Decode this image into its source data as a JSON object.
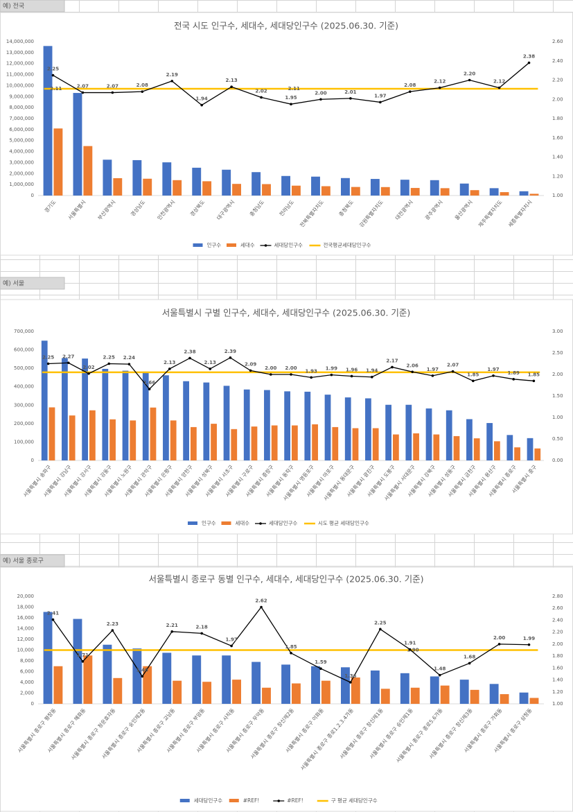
{
  "sheet_labels": [
    "예) 전국",
    "예) 서울",
    "예) 서울 종로구"
  ],
  "chart_data": [
    {
      "type": "combo",
      "title": "전국 시도 인구수, 세대수, 세대당인구수 (2025.06.30. 기준)",
      "categories": [
        "경기도",
        "서울특별시",
        "부산광역시",
        "경상남도",
        "인천광역시",
        "경상북도",
        "대구광역시",
        "충청남도",
        "전라남도",
        "전북특별자치도",
        "충청북도",
        "강원특별자치도",
        "대전광역시",
        "광주광역시",
        "울산광역시",
        "제주특별자치도",
        "세종특별자치시"
      ],
      "series": [
        {
          "name": "인구수",
          "color": "#4472c4",
          "kind": "bar",
          "values": [
            13600000,
            9330000,
            3260000,
            3220000,
            3020000,
            2530000,
            2350000,
            2130000,
            1780000,
            1720000,
            1590000,
            1510000,
            1440000,
            1400000,
            1090000,
            670000,
            390000
          ]
        },
        {
          "name": "세대수",
          "color": "#ed7d31",
          "kind": "bar",
          "values": [
            6100000,
            4500000,
            1580000,
            1530000,
            1400000,
            1300000,
            1060000,
            1040000,
            900000,
            850000,
            780000,
            770000,
            690000,
            670000,
            490000,
            310000,
            160000
          ]
        },
        {
          "name": "세대당인구수",
          "color": "#000000",
          "kind": "line",
          "axis": "y2",
          "values": [
            2.25,
            2.07,
            2.07,
            2.08,
            2.19,
            1.94,
            2.13,
            2.02,
            1.95,
            2.0,
            2.01,
            1.97,
            2.08,
            2.12,
            2.2,
            2.12,
            2.38
          ],
          "value_labels": [
            "2.25",
            "2.07",
            "2.07",
            "2.08",
            "2.19",
            "1.94",
            "2.13",
            "2.02",
            "1.95",
            "2.00",
            "2.01",
            "1.97",
            "2.08",
            "2.12",
            "2.20",
            "2.12",
            "2.38"
          ]
        }
      ],
      "average": {
        "name": "전국평균세대당인구수",
        "color": "#ffc000",
        "axis": "y2",
        "value": 2.11
      },
      "ylim": [
        0,
        14000000
      ],
      "yticks": [
        0,
        {
          "value": 1000000,
          "label": "1,000,000"
        },
        {
          "value": 2000000,
          "label": "2,000,000"
        },
        {
          "value": 3000000,
          "label": "3,000,000"
        },
        {
          "value": 4000000,
          "label": "4,000,000"
        },
        {
          "value": 5000000,
          "label": "5,000,000"
        },
        {
          "value": 6000000,
          "label": "6,000,000"
        },
        {
          "value": 7000000,
          "label": "7,000,000"
        },
        {
          "value": 8000000,
          "label": "8,000,000"
        },
        {
          "value": 9000000,
          "label": "9,000,000"
        },
        {
          "value": 10000000,
          "label": "10,000,000"
        },
        {
          "value": 11000000,
          "label": "11,000,000"
        },
        {
          "value": 12000000,
          "label": "12,000,000"
        },
        {
          "value": 13000000,
          "label": "13,000,000"
        },
        {
          "value": 14000000,
          "label": "14,000,000"
        }
      ],
      "y2lim": [
        1.0,
        2.6
      ],
      "y2ticks": [
        {
          "value": 1.0,
          "label": "1.00"
        },
        {
          "value": 1.2,
          "label": "1.20"
        },
        {
          "value": 1.4,
          "label": "1.40"
        },
        {
          "value": 1.6,
          "label": "1.60"
        },
        {
          "value": 1.8,
          "label": "1.80"
        },
        {
          "value": 2.0,
          "label": "2.00"
        },
        {
          "value": 2.2,
          "label": "2.20"
        },
        {
          "value": 2.4,
          "label": "2.40"
        },
        {
          "value": 2.6,
          "label": "2.60"
        }
      ],
      "grid": false,
      "legend": "bottom"
    },
    {
      "type": "combo",
      "title": "서울특별시 구별 인구수, 세대수, 세대당인구수 (2025.06.30. 기준)",
      "categories": [
        "서울특별시 송파구",
        "서울특별시 강남구",
        "서울특별시 강서구",
        "서울특별시 강동구",
        "서울특별시 노원구",
        "서울특별시 관악구",
        "서울특별시 은평구",
        "서울특별시 양천구",
        "서울특별시 성북구",
        "서울특별시 서초구",
        "서울특별시 구로구",
        "서울특별시 중랑구",
        "서울특별시 동작구",
        "서울특별시 영등포구",
        "서울특별시 마포구",
        "서울특별시 동대문구",
        "서울특별시 광진구",
        "서울특별시 도봉구",
        "서울특별시 서대문구",
        "서울특별시 강북구",
        "서울특별시 성동구",
        "서울특별시 금천구",
        "서울특별시 용산구",
        "서울특별시 종로구",
        "서울특별시 중구"
      ],
      "series": [
        {
          "name": "인구수",
          "color": "#4472c4",
          "kind": "bar",
          "values": [
            650000,
            555000,
            553000,
            497000,
            487000,
            482000,
            462000,
            430000,
            423000,
            405000,
            385000,
            382000,
            375000,
            373000,
            357000,
            342000,
            337000,
            302000,
            302000,
            282000,
            272000,
            224000,
            203000,
            138000,
            121000
          ]
        },
        {
          "name": "세대수",
          "color": "#ed7d31",
          "kind": "bar",
          "values": [
            288000,
            244000,
            272000,
            223000,
            217000,
            287000,
            217000,
            181000,
            199000,
            170000,
            184000,
            190000,
            190000,
            196000,
            181000,
            175000,
            175000,
            141000,
            147000,
            141000,
            132000,
            120000,
            104000,
            71000,
            65000
          ]
        },
        {
          "name": "세대당인구수",
          "color": "#000000",
          "kind": "line",
          "axis": "y2",
          "values": [
            2.25,
            2.27,
            2.02,
            2.25,
            2.24,
            1.66,
            2.13,
            2.38,
            2.13,
            2.39,
            2.09,
            2.0,
            2.0,
            1.93,
            1.99,
            1.96,
            1.94,
            2.17,
            2.06,
            1.97,
            2.07,
            1.85,
            1.97,
            1.89,
            1.85
          ],
          "value_labels": [
            "2.25",
            "2.27",
            "2.02",
            "2.25",
            "2.24",
            "1.66",
            "2.13",
            "2.38",
            "2.13",
            "2.39",
            "2.09",
            "2.00",
            "2.00",
            "1.93",
            "1.99",
            "1.96",
            "1.94",
            "2.17",
            "2.06",
            "1.97",
            "2.07",
            "1.85",
            "1.97",
            "1.89",
            "1.85"
          ]
        }
      ],
      "average": {
        "name": "시도 평균 세대당인구수",
        "color": "#ffc000",
        "axis": "y2",
        "value": 2.05
      },
      "ylim": [
        0,
        700000
      ],
      "yticks": [
        0,
        {
          "value": 100000,
          "label": "100,000"
        },
        {
          "value": 200000,
          "label": "200,000"
        },
        {
          "value": 300000,
          "label": "300,000"
        },
        {
          "value": 400000,
          "label": "400,000"
        },
        {
          "value": 500000,
          "label": "500,000"
        },
        {
          "value": 600000,
          "label": "600,000"
        },
        {
          "value": 700000,
          "label": "700,000"
        }
      ],
      "y2lim": [
        0,
        3.0
      ],
      "y2ticks": [
        {
          "value": 0,
          "label": "0.00"
        },
        {
          "value": 0.5,
          "label": "0.50"
        },
        {
          "value": 1.0,
          "label": "1.00"
        },
        {
          "value": 1.5,
          "label": "1.50"
        },
        {
          "value": 2.0,
          "label": "2.00"
        },
        {
          "value": 2.5,
          "label": "2.50"
        },
        {
          "value": 3.0,
          "label": "3.00"
        }
      ],
      "grid": false,
      "legend": "bottom"
    },
    {
      "type": "combo",
      "title": "서울특별시 종로구 동별 인구수, 세대수, 세대당인구수 (2025.06.30. 기준)",
      "categories": [
        "서울특별시 종로구 평창동",
        "서울특별시 종로구 혜화동",
        "서울특별시 종로구 청운효자동",
        "서울특별시 종로구 숭인제2동",
        "서울특별시 종로구 교남동",
        "서울특별시 종로구 부암동",
        "서울특별시 종로구 사직동",
        "서울특별시 종로구 무악동",
        "서울특별시 종로구 창신제2동",
        "서울특별시 종로구 이화동",
        "서울특별시 종로구 종로1.2.3.4가동",
        "서울특별시 종로구 창신제1동",
        "서울특별시 종로구 숭인제1동",
        "서울특별시 종로구 종로5.6가동",
        "서울특별시 종로구 창신제3동",
        "서울특별시 종로구 가회동",
        "서울특별시 종로구 삼청동"
      ],
      "series": [
        {
          "name": "세대당인구수",
          "color": "#4472c4",
          "kind": "bar",
          "values": [
            17100,
            15800,
            11000,
            10300,
            9500,
            9000,
            9000,
            7800,
            7300,
            7000,
            6800,
            6200,
            5700,
            5100,
            4500,
            3700,
            2100
          ]
        },
        {
          "name": "#REF!",
          "color": "#ed7d31",
          "kind": "bar",
          "values": [
            7000,
            9000,
            4800,
            7000,
            4300,
            4100,
            4500,
            3000,
            3800,
            4300,
            4900,
            2800,
            3000,
            3400,
            2600,
            1800,
            1100
          ]
        },
        {
          "name": "#REF!",
          "color": "#000000",
          "kind": "line",
          "axis": "y2",
          "values": [
            2.41,
            1.71,
            2.23,
            1.46,
            2.21,
            2.18,
            1.97,
            2.62,
            1.85,
            1.59,
            1.36,
            2.25,
            1.91,
            1.48,
            1.68,
            2.0,
            1.99
          ],
          "value_labels": [
            "2.41",
            "1.71",
            "2.23",
            "1.46",
            "2.21",
            "2.18",
            "1.97",
            "2.62",
            "1.85",
            "1.59",
            "1.36",
            "2.25",
            "1.91",
            "1.48",
            "1.68",
            "2.00",
            "1.99"
          ]
        }
      ],
      "average": {
        "name": "구 평균 세대당인구수",
        "color": "#ffc000",
        "axis": "y2",
        "value": 1.9,
        "value_label": "1.90"
      },
      "ylim": [
        0,
        20000
      ],
      "yticks": [
        0,
        {
          "value": 2000,
          "label": "2,000"
        },
        {
          "value": 4000,
          "label": "4,000"
        },
        {
          "value": 6000,
          "label": "6,000"
        },
        {
          "value": 8000,
          "label": "8,000"
        },
        {
          "value": 10000,
          "label": "10,000"
        },
        {
          "value": 12000,
          "label": "12,000"
        },
        {
          "value": 14000,
          "label": "14,000"
        },
        {
          "value": 16000,
          "label": "16,000"
        },
        {
          "value": 18000,
          "label": "18,000"
        },
        {
          "value": 20000,
          "label": "20,000"
        }
      ],
      "y2lim": [
        1.0,
        2.8
      ],
      "y2ticks": [
        {
          "value": 1.0,
          "label": "1.00"
        },
        {
          "value": 1.2,
          "label": "1.20"
        },
        {
          "value": 1.4,
          "label": "1.40"
        },
        {
          "value": 1.6,
          "label": "1.60"
        },
        {
          "value": 1.8,
          "label": "1.80"
        },
        {
          "value": 2.0,
          "label": "2.00"
        },
        {
          "value": 2.2,
          "label": "2.20"
        },
        {
          "value": 2.4,
          "label": "2.40"
        },
        {
          "value": 2.6,
          "label": "2.60"
        },
        {
          "value": 2.8,
          "label": "2.80"
        }
      ],
      "grid": false,
      "legend": "bottom"
    }
  ]
}
